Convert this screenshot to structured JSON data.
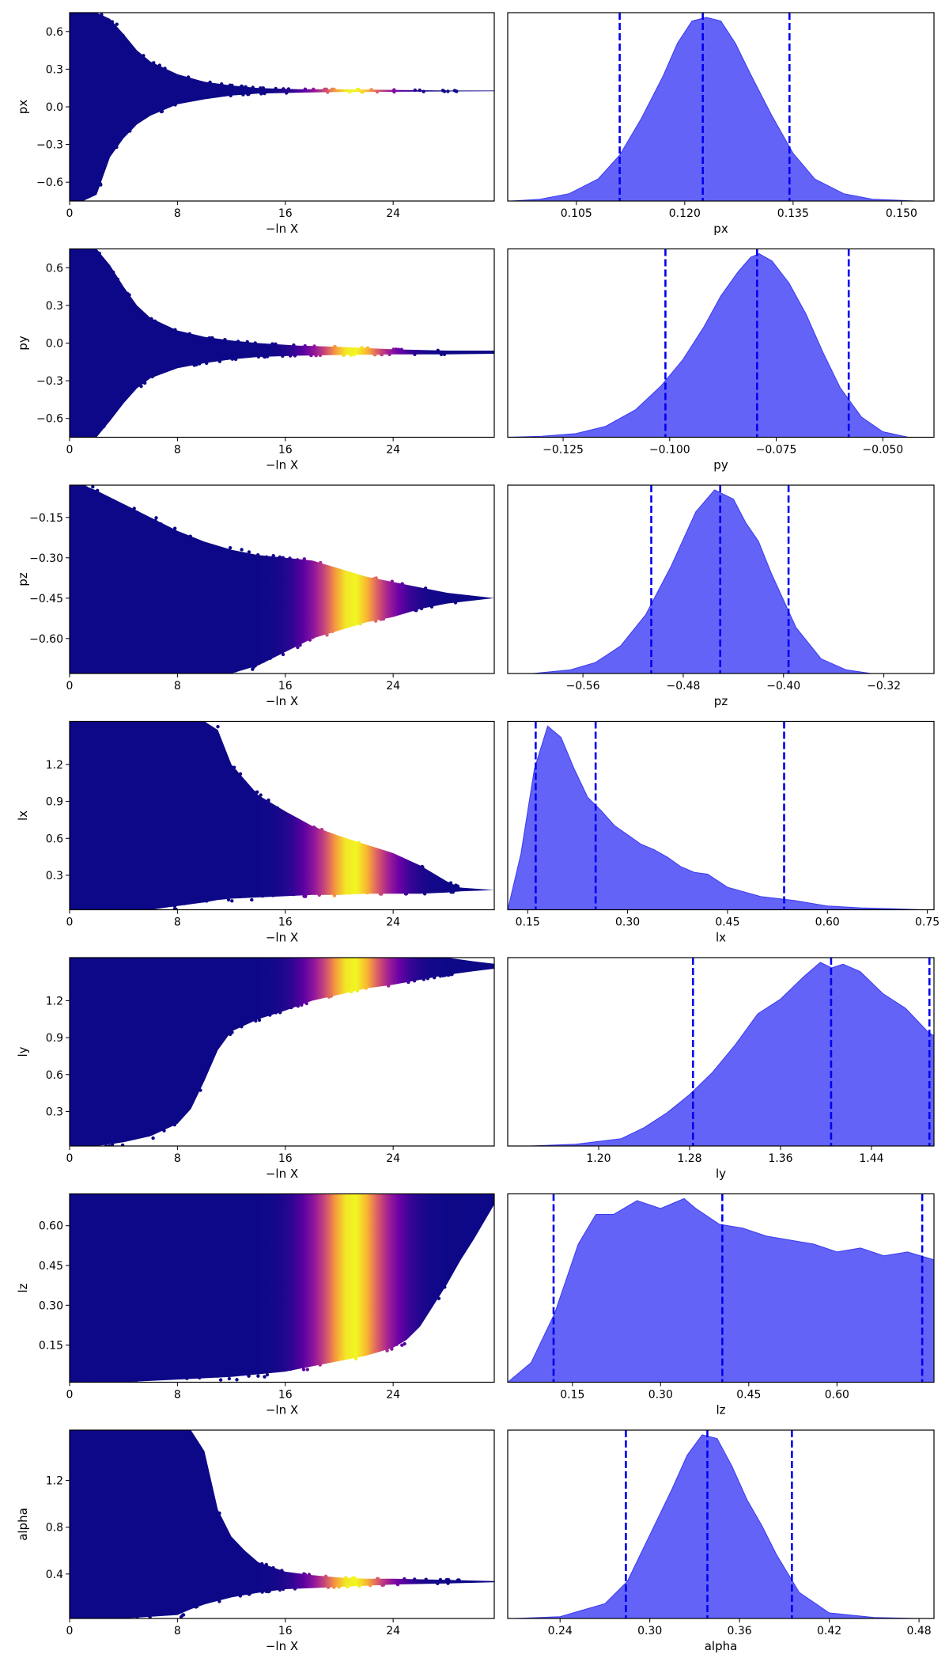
{
  "colors": {
    "kde_fill": "#5b5bf7",
    "kde_edge": "#3a3af0",
    "quantile_line": "#0000ee",
    "trace_colormap": "plasma"
  },
  "chart_data": [
    {
      "type": "scatter",
      "param": "px",
      "panel": "trace",
      "xlabel": "−ln X",
      "ylabel": "px",
      "xlim": [
        0,
        31.5
      ],
      "ylim": [
        -0.75,
        0.75
      ],
      "xticks": [
        0,
        8,
        16,
        24
      ],
      "yticks": [
        -0.6,
        -0.3,
        0.0,
        0.3,
        0.6
      ],
      "ytick_labels": [
        "−0.6",
        "−0.3",
        "0.0",
        "0.3",
        "0.6"
      ],
      "envelope": {
        "x": [
          0,
          1,
          2,
          3,
          4,
          5,
          6,
          8,
          10,
          12,
          14,
          17,
          20,
          24,
          28,
          31.5
        ],
        "upper": [
          0.75,
          0.75,
          0.75,
          0.7,
          0.58,
          0.45,
          0.36,
          0.26,
          0.2,
          0.17,
          0.15,
          0.14,
          0.14,
          0.135,
          0.13,
          0.13
        ],
        "lower": [
          -0.75,
          -0.75,
          -0.7,
          -0.4,
          -0.25,
          -0.14,
          -0.07,
          0.02,
          0.06,
          0.09,
          0.105,
          0.113,
          0.118,
          0.12,
          0.123,
          0.125
        ]
      },
      "weight_peak_x": 21
    },
    {
      "type": "area",
      "param": "px",
      "panel": "marginal",
      "xlabel": "px",
      "xlim": [
        0.0955,
        0.1545
      ],
      "xticks": [
        0.105,
        0.12,
        0.135,
        0.15
      ],
      "xtick_labels": [
        "0.105",
        "0.120",
        "0.135",
        "0.150"
      ],
      "x": [
        0.096,
        0.1,
        0.104,
        0.108,
        0.111,
        0.114,
        0.117,
        0.119,
        0.121,
        0.123,
        0.125,
        0.127,
        0.129,
        0.132,
        0.135,
        0.138,
        0.142,
        0.146,
        0.152
      ],
      "y": [
        0.0,
        0.01,
        0.04,
        0.12,
        0.25,
        0.45,
        0.68,
        0.86,
        0.98,
        1.0,
        0.98,
        0.86,
        0.7,
        0.47,
        0.26,
        0.12,
        0.04,
        0.01,
        0.0
      ],
      "quantiles": [
        0.111,
        0.1225,
        0.1345
      ]
    },
    {
      "type": "scatter",
      "param": "py",
      "panel": "trace",
      "xlabel": "−ln X",
      "ylabel": "py",
      "xlim": [
        0,
        31.5
      ],
      "ylim": [
        -0.75,
        0.75
      ],
      "xticks": [
        0,
        8,
        16,
        24
      ],
      "yticks": [
        -0.6,
        -0.3,
        0.0,
        0.3,
        0.6
      ],
      "ytick_labels": [
        "−0.6",
        "−0.3",
        "0.0",
        "0.3",
        "0.6"
      ],
      "envelope": {
        "x": [
          0,
          1,
          2,
          3,
          4,
          5,
          6,
          8,
          10,
          12,
          14,
          17,
          20,
          24,
          28,
          31.5
        ],
        "upper": [
          0.75,
          0.75,
          0.75,
          0.62,
          0.45,
          0.3,
          0.2,
          0.1,
          0.05,
          0.02,
          0.0,
          -0.02,
          -0.03,
          -0.05,
          -0.06,
          -0.06
        ],
        "lower": [
          -0.75,
          -0.75,
          -0.75,
          -0.62,
          -0.48,
          -0.36,
          -0.28,
          -0.2,
          -0.16,
          -0.13,
          -0.11,
          -0.1,
          -0.095,
          -0.09,
          -0.09,
          -0.085
        ]
      },
      "weight_peak_x": 21
    },
    {
      "type": "area",
      "param": "py",
      "panel": "marginal",
      "xlabel": "py",
      "xlim": [
        -0.138,
        -0.038
      ],
      "xticks": [
        -0.125,
        -0.1,
        -0.075,
        -0.05
      ],
      "xtick_labels": [
        "−0.125",
        "−0.100",
        "−0.075",
        "−0.050"
      ],
      "x": [
        -0.138,
        -0.13,
        -0.122,
        -0.115,
        -0.108,
        -0.102,
        -0.097,
        -0.092,
        -0.088,
        -0.084,
        -0.081,
        -0.079,
        -0.076,
        -0.072,
        -0.068,
        -0.064,
        -0.06,
        -0.055,
        -0.05,
        -0.044
      ],
      "y": [
        0.0,
        0.005,
        0.02,
        0.06,
        0.15,
        0.28,
        0.42,
        0.6,
        0.77,
        0.9,
        0.98,
        1.0,
        0.96,
        0.84,
        0.67,
        0.46,
        0.27,
        0.11,
        0.03,
        0.0
      ],
      "quantiles": [
        -0.101,
        -0.0795,
        -0.058
      ]
    },
    {
      "type": "scatter",
      "param": "pz",
      "panel": "trace",
      "xlabel": "−ln X",
      "ylabel": "pz",
      "xlim": [
        0,
        31.5
      ],
      "ylim": [
        -0.73,
        -0.03
      ],
      "xticks": [
        0,
        8,
        16,
        24
      ],
      "yticks": [
        -0.6,
        -0.45,
        -0.3,
        -0.15
      ],
      "ytick_labels": [
        "−0.60",
        "−0.45",
        "−0.30",
        "−0.15"
      ],
      "envelope": {
        "x": [
          0,
          1,
          2,
          4,
          6,
          8,
          10,
          12,
          14,
          16,
          18,
          20,
          22,
          24,
          26,
          28,
          31.5
        ],
        "upper": [
          -0.03,
          -0.03,
          -0.05,
          -0.1,
          -0.15,
          -0.2,
          -0.24,
          -0.27,
          -0.29,
          -0.3,
          -0.31,
          -0.34,
          -0.37,
          -0.39,
          -0.41,
          -0.43,
          -0.45
        ],
        "lower": [
          -0.73,
          -0.73,
          -0.73,
          -0.73,
          -0.73,
          -0.73,
          -0.73,
          -0.73,
          -0.7,
          -0.65,
          -0.6,
          -0.57,
          -0.54,
          -0.52,
          -0.49,
          -0.47,
          -0.45
        ]
      },
      "weight_peak_x": 21
    },
    {
      "type": "area",
      "param": "pz",
      "panel": "marginal",
      "xlabel": "pz",
      "xlim": [
        -0.62,
        -0.28
      ],
      "xticks": [
        -0.56,
        -0.48,
        -0.4,
        -0.32
      ],
      "xtick_labels": [
        "−0.56",
        "−0.48",
        "−0.40",
        "−0.32"
      ],
      "x": [
        -0.6,
        -0.57,
        -0.55,
        -0.53,
        -0.51,
        -0.49,
        -0.47,
        -0.455,
        -0.44,
        -0.43,
        -0.42,
        -0.41,
        -0.39,
        -0.37,
        -0.35,
        -0.33
      ],
      "y": [
        0.0,
        0.02,
        0.06,
        0.15,
        0.32,
        0.58,
        0.88,
        1.0,
        0.95,
        0.82,
        0.72,
        0.55,
        0.25,
        0.08,
        0.02,
        0.0
      ],
      "quantiles": [
        -0.5055,
        -0.4505,
        -0.396
      ]
    },
    {
      "type": "scatter",
      "param": "lx",
      "panel": "trace",
      "xlabel": "−ln X",
      "ylabel": "lx",
      "xlim": [
        0,
        31.5
      ],
      "ylim": [
        0.02,
        1.55
      ],
      "xticks": [
        0,
        8,
        16,
        24
      ],
      "yticks": [
        0.3,
        0.6,
        0.9,
        1.2
      ],
      "ytick_labels": [
        "0.3",
        "0.6",
        "0.9",
        "1.2"
      ],
      "envelope": {
        "x": [
          0,
          2,
          4,
          6,
          8,
          10,
          11,
          12,
          14,
          16,
          18,
          20,
          22,
          24,
          26,
          28,
          29,
          31.5
        ],
        "upper": [
          1.55,
          1.55,
          1.55,
          1.55,
          1.55,
          1.55,
          1.48,
          1.2,
          0.95,
          0.82,
          0.7,
          0.62,
          0.55,
          0.48,
          0.38,
          0.25,
          0.2,
          0.18
        ],
        "lower": [
          0.02,
          0.02,
          0.02,
          0.02,
          0.05,
          0.08,
          0.1,
          0.11,
          0.12,
          0.13,
          0.14,
          0.14,
          0.15,
          0.15,
          0.15,
          0.16,
          0.17,
          0.18
        ]
      },
      "weight_peak_x": 21
    },
    {
      "type": "area",
      "param": "lx",
      "panel": "marginal",
      "xlabel": "lx",
      "xlim": [
        0.12,
        0.76
      ],
      "xticks": [
        0.15,
        0.3,
        0.45,
        0.6,
        0.75
      ],
      "xtick_labels": [
        "0.15",
        "0.30",
        "0.45",
        "0.60",
        "0.75"
      ],
      "x": [
        0.12,
        0.14,
        0.16,
        0.18,
        0.2,
        0.22,
        0.24,
        0.26,
        0.28,
        0.3,
        0.32,
        0.34,
        0.36,
        0.38,
        0.4,
        0.42,
        0.45,
        0.5,
        0.55,
        0.6,
        0.65,
        0.7,
        0.74
      ],
      "y": [
        0.0,
        0.3,
        0.75,
        0.98,
        0.92,
        0.75,
        0.6,
        0.53,
        0.45,
        0.4,
        0.35,
        0.32,
        0.28,
        0.23,
        0.2,
        0.19,
        0.12,
        0.07,
        0.05,
        0.02,
        0.01,
        0.005,
        0.0
      ],
      "quantiles": [
        0.162,
        0.252,
        0.535
      ]
    },
    {
      "type": "scatter",
      "param": "ly",
      "panel": "trace",
      "xlabel": "−ln X",
      "ylabel": "ly",
      "xlim": [
        0,
        31.5
      ],
      "ylim": [
        0.02,
        1.55
      ],
      "xticks": [
        0,
        8,
        16,
        24
      ],
      "yticks": [
        0.3,
        0.6,
        0.9,
        1.2
      ],
      "ytick_labels": [
        "0.3",
        "0.6",
        "0.9",
        "1.2"
      ],
      "envelope": {
        "x": [
          0,
          2,
          4,
          6,
          8,
          9,
          10,
          11,
          12,
          14,
          16,
          18,
          20,
          22,
          24,
          26,
          28,
          30,
          31.5
        ],
        "upper": [
          1.55,
          1.55,
          1.55,
          1.55,
          1.55,
          1.55,
          1.55,
          1.55,
          1.55,
          1.55,
          1.55,
          1.55,
          1.55,
          1.55,
          1.55,
          1.55,
          1.55,
          1.52,
          1.5
        ],
        "lower": [
          0.02,
          0.02,
          0.05,
          0.1,
          0.2,
          0.32,
          0.55,
          0.8,
          0.95,
          1.05,
          1.12,
          1.2,
          1.25,
          1.3,
          1.33,
          1.37,
          1.41,
          1.44,
          1.46
        ]
      },
      "weight_peak_x": 21
    },
    {
      "type": "area",
      "param": "ly",
      "panel": "marginal",
      "xlabel": "ly",
      "xlim": [
        1.12,
        1.495
      ],
      "xticks": [
        1.2,
        1.28,
        1.36,
        1.44
      ],
      "xtick_labels": [
        "1.20",
        "1.28",
        "1.36",
        "1.44"
      ],
      "x": [
        1.14,
        1.18,
        1.22,
        1.24,
        1.26,
        1.28,
        1.3,
        1.32,
        1.34,
        1.36,
        1.38,
        1.395,
        1.405,
        1.415,
        1.43,
        1.45,
        1.47,
        1.49,
        1.495
      ],
      "y": [
        0.0,
        0.01,
        0.04,
        0.1,
        0.18,
        0.28,
        0.4,
        0.55,
        0.72,
        0.8,
        0.92,
        1.0,
        0.97,
        0.99,
        0.95,
        0.83,
        0.75,
        0.62,
        0.6
      ],
      "quantiles": [
        1.283,
        1.4045,
        1.491
      ]
    },
    {
      "type": "scatter",
      "param": "lz",
      "panel": "trace",
      "xlabel": "−ln X",
      "ylabel": "lz",
      "xlim": [
        0,
        31.5
      ],
      "ylim": [
        0.01,
        0.72
      ],
      "xticks": [
        0,
        8,
        16,
        24
      ],
      "yticks": [
        0.15,
        0.3,
        0.45,
        0.6
      ],
      "ytick_labels": [
        "0.15",
        "0.30",
        "0.45",
        "0.60"
      ],
      "envelope": {
        "x": [
          0,
          4,
          8,
          12,
          16,
          18,
          20,
          22,
          24,
          25,
          26,
          27,
          28,
          29,
          30,
          31.5
        ],
        "upper": [
          0.72,
          0.72,
          0.72,
          0.72,
          0.72,
          0.72,
          0.72,
          0.72,
          0.72,
          0.72,
          0.72,
          0.72,
          0.72,
          0.72,
          0.72,
          0.72
        ],
        "lower": [
          0.01,
          0.01,
          0.02,
          0.03,
          0.05,
          0.07,
          0.09,
          0.11,
          0.14,
          0.17,
          0.22,
          0.3,
          0.38,
          0.47,
          0.55,
          0.68
        ]
      },
      "weight_peak_x": 21
    },
    {
      "type": "area",
      "param": "lz",
      "panel": "marginal",
      "xlabel": "lz",
      "xlim": [
        0.04,
        0.765
      ],
      "xticks": [
        0.15,
        0.3,
        0.45,
        0.6
      ],
      "xtick_labels": [
        "0.15",
        "0.30",
        "0.45",
        "0.60"
      ],
      "x": [
        0.04,
        0.08,
        0.12,
        0.16,
        0.19,
        0.22,
        0.26,
        0.3,
        0.34,
        0.36,
        0.4,
        0.44,
        0.48,
        0.52,
        0.56,
        0.6,
        0.64,
        0.68,
        0.72,
        0.765
      ],
      "y": [
        0.0,
        0.1,
        0.35,
        0.7,
        0.85,
        0.85,
        0.92,
        0.88,
        0.93,
        0.88,
        0.8,
        0.78,
        0.74,
        0.72,
        0.7,
        0.66,
        0.68,
        0.64,
        0.66,
        0.62
      ],
      "quantiles": [
        0.118,
        0.405,
        0.745
      ]
    },
    {
      "type": "scatter",
      "param": "alpha",
      "panel": "trace",
      "xlabel": "−ln X",
      "ylabel": "alpha",
      "xlim": [
        0,
        31.5
      ],
      "ylim": [
        0.02,
        1.63
      ],
      "xticks": [
        0,
        8,
        16,
        24
      ],
      "yticks": [
        0.4,
        0.8,
        1.2
      ],
      "ytick_labels": [
        "0.4",
        "0.8",
        "1.2"
      ],
      "envelope": {
        "x": [
          0,
          4,
          8,
          9,
          10,
          11,
          12,
          13,
          14,
          16,
          18,
          20,
          22,
          24,
          28,
          31.5
        ],
        "upper": [
          1.63,
          1.63,
          1.63,
          1.63,
          1.45,
          0.95,
          0.72,
          0.6,
          0.5,
          0.42,
          0.39,
          0.37,
          0.36,
          0.36,
          0.35,
          0.34
        ],
        "lower": [
          0.02,
          0.02,
          0.05,
          0.1,
          0.14,
          0.17,
          0.2,
          0.22,
          0.24,
          0.27,
          0.28,
          0.29,
          0.3,
          0.31,
          0.32,
          0.33
        ]
      },
      "weight_peak_x": 21
    },
    {
      "type": "area",
      "param": "alpha",
      "panel": "marginal",
      "xlabel": "alpha",
      "xlim": [
        0.205,
        0.49
      ],
      "xticks": [
        0.24,
        0.3,
        0.36,
        0.42,
        0.48
      ],
      "xtick_labels": [
        "0.24",
        "0.30",
        "0.36",
        "0.42",
        "0.48"
      ],
      "x": [
        0.21,
        0.24,
        0.27,
        0.285,
        0.3,
        0.315,
        0.325,
        0.335,
        0.345,
        0.355,
        0.365,
        0.375,
        0.385,
        0.4,
        0.42,
        0.45,
        0.48
      ],
      "y": [
        0.0,
        0.01,
        0.08,
        0.2,
        0.45,
        0.7,
        0.88,
        0.99,
        0.97,
        0.82,
        0.64,
        0.5,
        0.34,
        0.14,
        0.03,
        0.005,
        0.0
      ],
      "quantiles": [
        0.284,
        0.3385,
        0.395
      ]
    }
  ]
}
